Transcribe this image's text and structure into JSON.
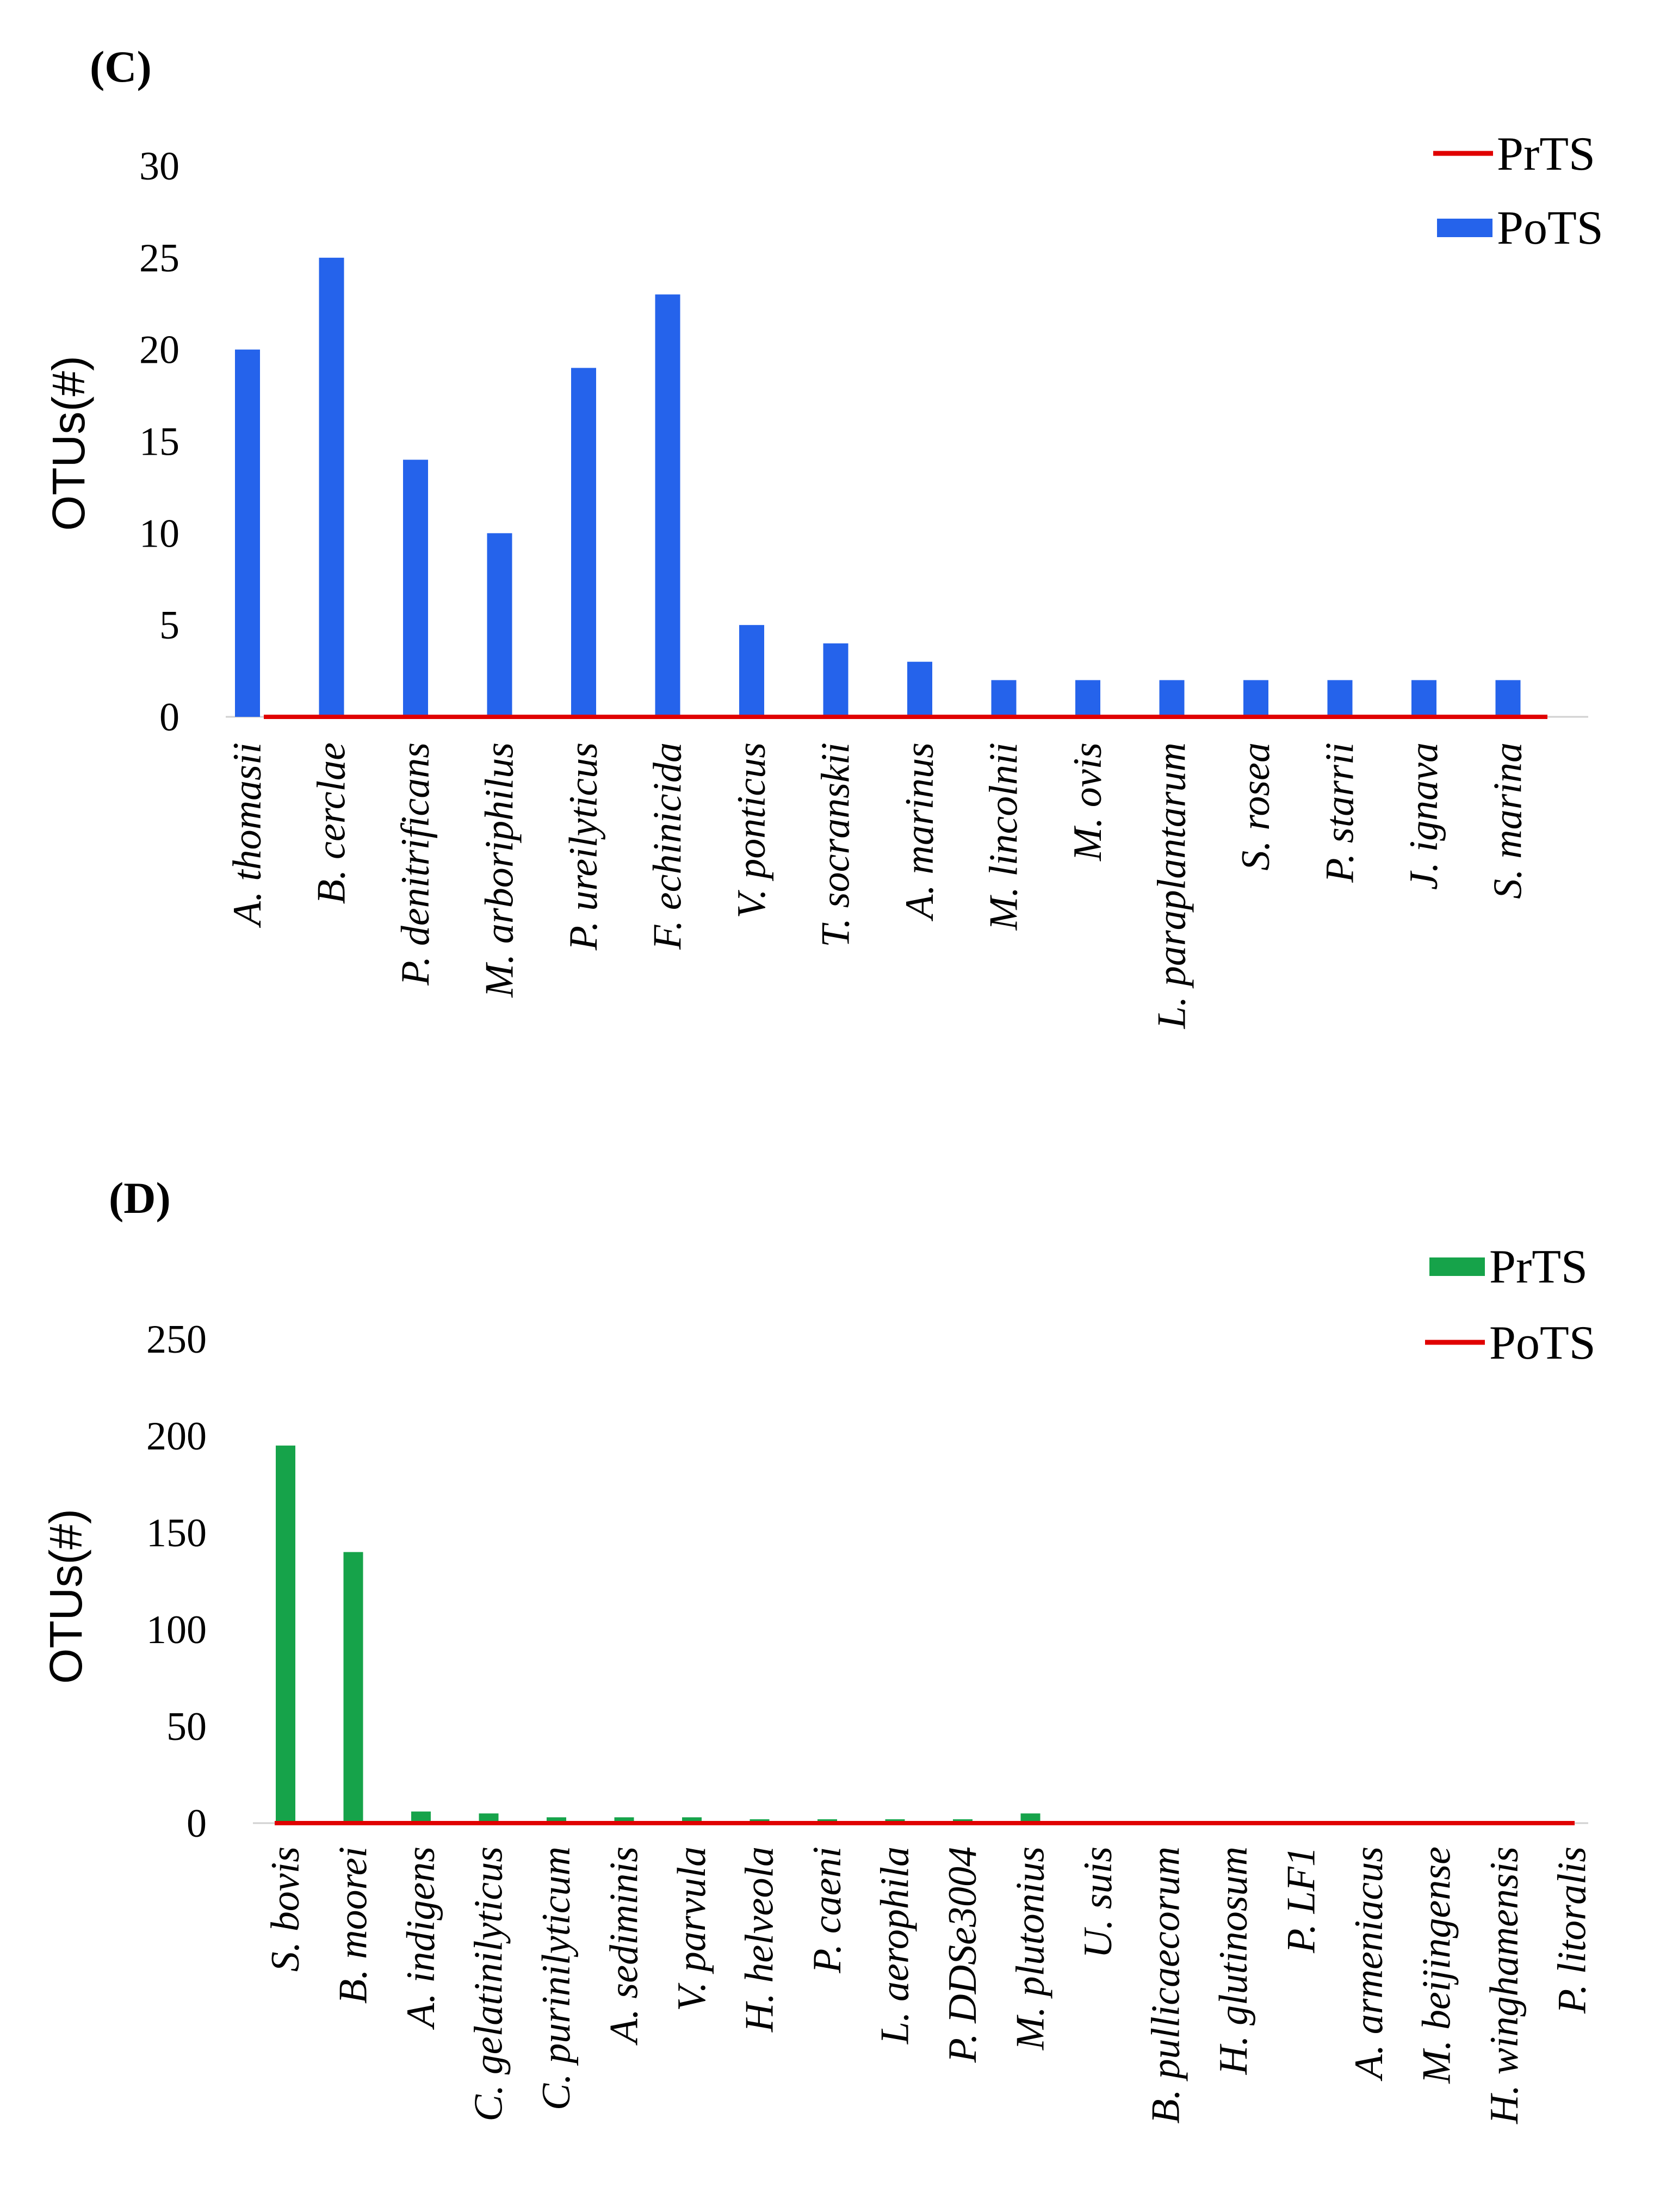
{
  "chart_data": [
    {
      "panel": "(C)",
      "type": "bar",
      "ylabel": "OTUs(#)",
      "ylim": [
        0,
        30
      ],
      "yticks": [
        0,
        5,
        10,
        15,
        20,
        25,
        30
      ],
      "categories": [
        "A. thomasii",
        "B. cerclae",
        "P. denitrificans",
        "M. arboriphilus",
        "P. ureilyticus",
        "F. echinicida",
        "V. ponticus",
        "T. socranskii",
        "A. marinus",
        "M. lincolnii",
        "M. ovis",
        "L. paraplantarum",
        "S. rosea",
        "P. starrii",
        "J. ignava",
        "S. marina"
      ],
      "series": [
        {
          "name": "PrTS",
          "style": "line",
          "color": "#e00000",
          "values": [
            0,
            0,
            0,
            0,
            0,
            0,
            0,
            0,
            0,
            0,
            0,
            0,
            0,
            0,
            0,
            0
          ]
        },
        {
          "name": "PoTS",
          "style": "bar",
          "color": "#2563eb",
          "values": [
            20,
            25,
            14,
            10,
            19,
            23,
            5,
            4,
            3,
            2,
            2,
            2,
            2,
            2,
            2,
            2
          ]
        }
      ],
      "legend_order": [
        "PrTS",
        "PoTS"
      ]
    },
    {
      "panel": "(D)",
      "type": "bar",
      "ylabel": "OTUs(#)",
      "ylim": [
        0,
        250
      ],
      "yticks": [
        0,
        50,
        100,
        150,
        200,
        250
      ],
      "categories": [
        "S. bovis",
        "B. moorei",
        "A. indigens",
        "C. gelatinilyticus",
        "C. purinilyticum",
        "A. sediminis",
        "V. parvula",
        "H. helveola",
        "P. caeni",
        "L. aerophila",
        "P. DDSe3004",
        "M. plutonius",
        "U. suis",
        "B. pullicaecorum",
        "H. glutinosum",
        "P. LF1",
        "A. armeniacus",
        "M. beijingense",
        "H. winghamensis",
        "P. litoralis"
      ],
      "series": [
        {
          "name": "PrTS",
          "style": "bar",
          "color": "#16a34a",
          "values": [
            195,
            140,
            6,
            5,
            3,
            3,
            3,
            2,
            2,
            2,
            2,
            5,
            0,
            0,
            0,
            0,
            0,
            0,
            0,
            0
          ]
        },
        {
          "name": "PoTS",
          "style": "line",
          "color": "#e00000",
          "values": [
            0,
            0,
            0,
            0,
            0,
            0,
            0,
            0,
            0,
            0,
            0,
            0,
            0,
            0,
            0,
            0,
            0,
            0,
            0,
            0
          ]
        }
      ],
      "legend_order": [
        "PrTS",
        "PoTS"
      ]
    }
  ]
}
